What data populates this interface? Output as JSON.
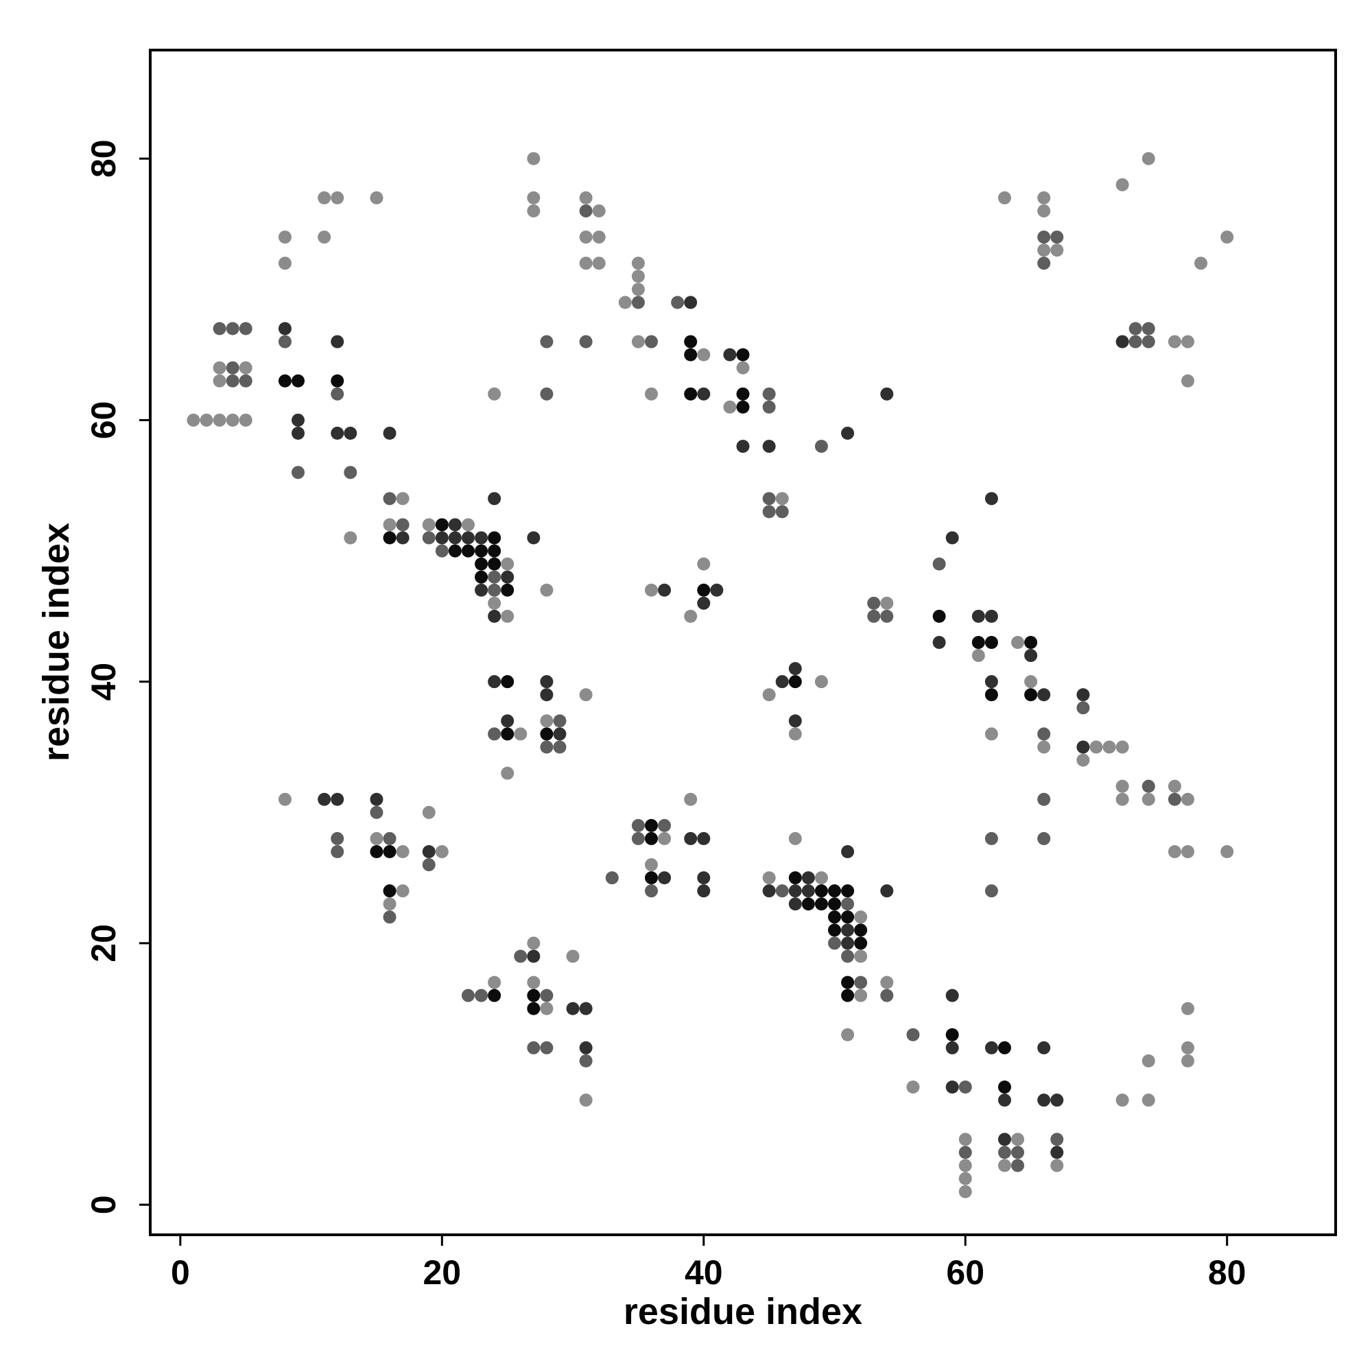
{
  "chart_data": {
    "type": "scatter",
    "xlabel": "residue index",
    "ylabel": "residue index",
    "xlim": [
      -2.3,
      88.3
    ],
    "ylim": [
      -2.3,
      88.3
    ],
    "xticks": [
      0,
      20,
      40,
      60,
      80
    ],
    "yticks": [
      0,
      20,
      40,
      60,
      80
    ],
    "x": [
      27,
      74,
      72,
      11,
      12,
      15,
      27,
      31,
      63,
      66,
      27,
      31,
      32,
      66,
      8,
      11,
      31,
      32,
      66,
      67,
      80,
      66,
      67,
      8,
      31,
      32,
      35,
      66,
      78,
      35,
      35,
      34,
      35,
      38,
      39,
      3,
      4,
      5,
      8,
      73,
      74,
      8,
      12,
      28,
      31,
      35,
      36,
      39,
      72,
      73,
      74,
      76,
      77,
      39,
      40,
      42,
      43,
      3,
      4,
      5,
      43,
      3,
      4,
      5,
      8,
      9,
      12,
      77,
      12,
      24,
      28,
      36,
      39,
      40,
      43,
      45,
      54,
      42,
      43,
      45,
      1,
      2,
      3,
      4,
      5,
      9,
      9,
      12,
      13,
      16,
      51,
      43,
      45,
      49,
      9,
      13,
      16,
      17,
      24,
      45,
      46,
      62,
      45,
      46,
      16,
      17,
      19,
      20,
      21,
      22,
      13,
      16,
      17,
      19,
      20,
      21,
      22,
      23,
      24,
      27,
      59,
      20,
      21,
      22,
      23,
      24,
      23,
      24,
      25,
      40,
      58,
      23,
      24,
      25,
      23,
      24,
      25,
      28,
      36,
      37,
      40,
      41,
      24,
      40,
      53,
      54,
      24,
      25,
      39,
      53,
      54,
      58,
      61,
      62,
      58,
      61,
      62,
      64,
      65,
      61,
      65,
      47,
      24,
      25,
      28,
      46,
      47,
      49,
      62,
      65,
      28,
      31,
      45,
      62,
      65,
      66,
      69,
      69,
      25,
      28,
      29,
      47,
      24,
      25,
      26,
      28,
      29,
      47,
      62,
      66,
      28,
      29,
      66,
      69,
      70,
      71,
      72,
      69,
      25,
      72,
      74,
      76,
      8,
      11,
      12,
      15,
      39,
      66,
      72,
      74,
      76,
      77,
      15,
      19,
      35,
      36,
      37,
      12,
      15,
      16,
      35,
      36,
      37,
      39,
      40,
      47,
      62,
      66,
      12,
      15,
      16,
      17,
      19,
      20,
      51,
      76,
      77,
      80,
      19,
      36,
      33,
      36,
      37,
      40,
      45,
      47,
      48,
      49,
      16,
      17,
      36,
      40,
      45,
      46,
      47,
      48,
      49,
      50,
      51,
      54,
      62,
      16,
      47,
      48,
      49,
      50,
      51,
      16,
      50,
      51,
      52,
      50,
      51,
      52,
      27,
      50,
      51,
      52,
      26,
      27,
      30,
      51,
      52,
      24,
      27,
      51,
      52,
      54,
      22,
      23,
      24,
      27,
      28,
      51,
      52,
      54,
      59,
      27,
      28,
      30,
      31,
      77,
      51,
      56,
      59,
      27,
      28,
      31,
      59,
      62,
      63,
      66,
      77,
      31,
      74,
      77,
      56,
      59,
      60,
      63,
      31,
      63,
      66,
      67,
      72,
      74,
      60,
      63,
      64,
      67,
      60,
      63,
      64,
      67,
      60,
      63,
      64,
      67,
      60,
      60
    ],
    "values": [
      80,
      80,
      78,
      77,
      77,
      77,
      77,
      77,
      77,
      77,
      76,
      76,
      76,
      76,
      74,
      74,
      74,
      74,
      74,
      74,
      74,
      73,
      73,
      72,
      72,
      72,
      72,
      72,
      72,
      71,
      70,
      69,
      69,
      69,
      69,
      67,
      67,
      67,
      67,
      67,
      67,
      66,
      66,
      66,
      66,
      66,
      66,
      66,
      66,
      66,
      66,
      66,
      66,
      65,
      65,
      65,
      65,
      64,
      64,
      64,
      64,
      63,
      63,
      63,
      63,
      63,
      63,
      63,
      62,
      62,
      62,
      62,
      62,
      62,
      62,
      62,
      62,
      61,
      61,
      61,
      60,
      60,
      60,
      60,
      60,
      60,
      59,
      59,
      59,
      59,
      59,
      58,
      58,
      58,
      56,
      56,
      54,
      54,
      54,
      54,
      54,
      54,
      53,
      53,
      52,
      52,
      52,
      52,
      52,
      52,
      51,
      51,
      51,
      51,
      51,
      51,
      51,
      51,
      51,
      51,
      51,
      50,
      50,
      50,
      50,
      50,
      49,
      49,
      49,
      49,
      49,
      48,
      48,
      48,
      47,
      47,
      47,
      47,
      47,
      47,
      47,
      47,
      46,
      46,
      46,
      46,
      45,
      45,
      45,
      45,
      45,
      45,
      45,
      45,
      43,
      43,
      43,
      43,
      43,
      42,
      42,
      41,
      40,
      40,
      40,
      40,
      40,
      40,
      40,
      40,
      39,
      39,
      39,
      39,
      39,
      39,
      39,
      38,
      37,
      37,
      37,
      37,
      36,
      36,
      36,
      36,
      36,
      36,
      36,
      36,
      35,
      35,
      35,
      35,
      35,
      35,
      35,
      34,
      33,
      32,
      32,
      32,
      31,
      31,
      31,
      31,
      31,
      31,
      31,
      31,
      31,
      31,
      30,
      30,
      29,
      29,
      29,
      28,
      28,
      28,
      28,
      28,
      28,
      28,
      28,
      28,
      28,
      28,
      27,
      27,
      27,
      27,
      27,
      27,
      27,
      27,
      27,
      27,
      26,
      26,
      25,
      25,
      25,
      25,
      25,
      25,
      25,
      25,
      24,
      24,
      24,
      24,
      24,
      24,
      24,
      24,
      24,
      24,
      24,
      24,
      24,
      23,
      23,
      23,
      23,
      23,
      23,
      22,
      22,
      22,
      22,
      21,
      21,
      21,
      20,
      20,
      20,
      20,
      19,
      19,
      19,
      19,
      19,
      17,
      17,
      17,
      17,
      17,
      16,
      16,
      16,
      16,
      16,
      16,
      16,
      16,
      16,
      15,
      15,
      15,
      15,
      15,
      13,
      13,
      13,
      12,
      12,
      12,
      12,
      12,
      12,
      12,
      12,
      11,
      11,
      11,
      9,
      9,
      9,
      9,
      8,
      8,
      8,
      8,
      8,
      8,
      5,
      5,
      5,
      5,
      4,
      4,
      4,
      4,
      3,
      3,
      3,
      3,
      2,
      1
    ],
    "colors": [
      "#8c8c8c",
      "#8c8c8c",
      "#8c8c8c",
      "#8c8c8c",
      "#8c8c8c",
      "#8c8c8c",
      "#8c8c8c",
      "#8c8c8c",
      "#8c8c8c",
      "#8c8c8c",
      "#8c8c8c",
      "#5e5e5e",
      "#8c8c8c",
      "#8c8c8c",
      "#8c8c8c",
      "#8c8c8c",
      "#8c8c8c",
      "#8c8c8c",
      "#5e5e5e",
      "#5e5e5e",
      "#8c8c8c",
      "#8c8c8c",
      "#8c8c8c",
      "#8c8c8c",
      "#8c8c8c",
      "#8c8c8c",
      "#8c8c8c",
      "#5e5e5e",
      "#8c8c8c",
      "#8c8c8c",
      "#8c8c8c",
      "#8c8c8c",
      "#5e5e5e",
      "#5e5e5e",
      "#303030",
      "#5e5e5e",
      "#5e5e5e",
      "#5e5e5e",
      "#303030",
      "#5e5e5e",
      "#5e5e5e",
      "#5e5e5e",
      "#303030",
      "#5e5e5e",
      "#5e5e5e",
      "#8c8c8c",
      "#5e5e5e",
      "#0c0c0c",
      "#303030",
      "#5e5e5e",
      "#5e5e5e",
      "#8c8c8c",
      "#8c8c8c",
      "#0c0c0c",
      "#8c8c8c",
      "#303030",
      "#0c0c0c",
      "#8c8c8c",
      "#5e5e5e",
      "#8c8c8c",
      "#8c8c8c",
      "#8c8c8c",
      "#5e5e5e",
      "#5e5e5e",
      "#0c0c0c",
      "#0c0c0c",
      "#0c0c0c",
      "#8c8c8c",
      "#5e5e5e",
      "#8c8c8c",
      "#5e5e5e",
      "#8c8c8c",
      "#0c0c0c",
      "#303030",
      "#0c0c0c",
      "#5e5e5e",
      "#303030",
      "#8c8c8c",
      "#0c0c0c",
      "#5e5e5e",
      "#8c8c8c",
      "#8c8c8c",
      "#8c8c8c",
      "#8c8c8c",
      "#8c8c8c",
      "#303030",
      "#303030",
      "#303030",
      "#303030",
      "#303030",
      "#303030",
      "#303030",
      "#303030",
      "#5e5e5e",
      "#5e5e5e",
      "#5e5e5e",
      "#5e5e5e",
      "#8c8c8c",
      "#303030",
      "#5e5e5e",
      "#8c8c8c",
      "#303030",
      "#5e5e5e",
      "#5e5e5e",
      "#8c8c8c",
      "#5e5e5e",
      "#8c8c8c",
      "#0c0c0c",
      "#303030",
      "#8c8c8c",
      "#8c8c8c",
      "#0c0c0c",
      "#303030",
      "#5e5e5e",
      "#303030",
      "#303030",
      "#303030",
      "#303030",
      "#0c0c0c",
      "#303030",
      "#303030",
      "#5e5e5e",
      "#0c0c0c",
      "#0c0c0c",
      "#0c0c0c",
      "#0c0c0c",
      "#0c0c0c",
      "#0c0c0c",
      "#8c8c8c",
      "#8c8c8c",
      "#5e5e5e",
      "#0c0c0c",
      "#5e5e5e",
      "#303030",
      "#303030",
      "#5e5e5e",
      "#0c0c0c",
      "#8c8c8c",
      "#8c8c8c",
      "#303030",
      "#0c0c0c",
      "#303030",
      "#8c8c8c",
      "#303030",
      "#5e5e5e",
      "#8c8c8c",
      "#303030",
      "#8c8c8c",
      "#8c8c8c",
      "#5e5e5e",
      "#5e5e5e",
      "#0c0c0c",
      "#303030",
      "#303030",
      "#303030",
      "#0c0c0c",
      "#0c0c0c",
      "#8c8c8c",
      "#0c0c0c",
      "#8c8c8c",
      "#303030",
      "#303030",
      "#303030",
      "#0c0c0c",
      "#303030",
      "#303030",
      "#0c0c0c",
      "#8c8c8c",
      "#303030",
      "#8c8c8c",
      "#303030",
      "#8c8c8c",
      "#8c8c8c",
      "#0c0c0c",
      "#0c0c0c",
      "#303030",
      "#303030",
      "#5e5e5e",
      "#303030",
      "#8c8c8c",
      "#5e5e5e",
      "#303030",
      "#5e5e5e",
      "#0c0c0c",
      "#8c8c8c",
      "#0c0c0c",
      "#303030",
      "#8c8c8c",
      "#8c8c8c",
      "#5e5e5e",
      "#5e5e5e",
      "#5e5e5e",
      "#8c8c8c",
      "#303030",
      "#8c8c8c",
      "#8c8c8c",
      "#8c8c8c",
      "#8c8c8c",
      "#8c8c8c",
      "#8c8c8c",
      "#5e5e5e",
      "#8c8c8c",
      "#8c8c8c",
      "#303030",
      "#303030",
      "#303030",
      "#8c8c8c",
      "#5e5e5e",
      "#8c8c8c",
      "#8c8c8c",
      "#5e5e5e",
      "#8c8c8c",
      "#5e5e5e",
      "#8c8c8c",
      "#5e5e5e",
      "#0c0c0c",
      "#5e5e5e",
      "#5e5e5e",
      "#8c8c8c",
      "#5e5e5e",
      "#5e5e5e",
      "#0c0c0c",
      "#8c8c8c",
      "#303030",
      "#303030",
      "#8c8c8c",
      "#5e5e5e",
      "#5e5e5e",
      "#5e5e5e",
      "#0c0c0c",
      "#0c0c0c",
      "#8c8c8c",
      "#303030",
      "#8c8c8c",
      "#303030",
      "#8c8c8c",
      "#8c8c8c",
      "#8c8c8c",
      "#5e5e5e",
      "#8c8c8c",
      "#5e5e5e",
      "#0c0c0c",
      "#303030",
      "#303030",
      "#8c8c8c",
      "#0c0c0c",
      "#303030",
      "#8c8c8c",
      "#0c0c0c",
      "#8c8c8c",
      "#5e5e5e",
      "#303030",
      "#303030",
      "#5e5e5e",
      "#303030",
      "#303030",
      "#0c0c0c",
      "#0c0c0c",
      "#0c0c0c",
      "#303030",
      "#5e5e5e",
      "#8c8c8c",
      "#303030",
      "#0c0c0c",
      "#0c0c0c",
      "#0c0c0c",
      "#5e5e5e",
      "#5e5e5e",
      "#0c0c0c",
      "#0c0c0c",
      "#8c8c8c",
      "#0c0c0c",
      "#303030",
      "#0c0c0c",
      "#8c8c8c",
      "#5e5e5e",
      "#303030",
      "#0c0c0c",
      "#5e5e5e",
      "#303030",
      "#8c8c8c",
      "#5e5e5e",
      "#8c8c8c",
      "#8c8c8c",
      "#8c8c8c",
      "#0c0c0c",
      "#5e5e5e",
      "#8c8c8c",
      "#5e5e5e",
      "#5e5e5e",
      "#0c0c0c",
      "#0c0c0c",
      "#5e5e5e",
      "#0c0c0c",
      "#8c8c8c",
      "#5e5e5e",
      "#303030",
      "#0c0c0c",
      "#8c8c8c",
      "#303030",
      "#303030",
      "#8c8c8c",
      "#8c8c8c",
      "#5e5e5e",
      "#0c0c0c",
      "#5e5e5e",
      "#5e5e5e",
      "#303030",
      "#303030",
      "#303030",
      "#0c0c0c",
      "#303030",
      "#8c8c8c",
      "#5e5e5e",
      "#8c8c8c",
      "#8c8c8c",
      "#8c8c8c",
      "#303030",
      "#5e5e5e",
      "#0c0c0c",
      "#8c8c8c",
      "#303030",
      "#303030",
      "#303030",
      "#8c8c8c",
      "#8c8c8c",
      "#8c8c8c",
      "#303030",
      "#8c8c8c",
      "#5e5e5e",
      "#5e5e5e",
      "#5e5e5e",
      "#5e5e5e",
      "#303030",
      "#8c8c8c",
      "#8c8c8c",
      "#5e5e5e",
      "#8c8c8c",
      "#8c8c8c",
      "#8c8c8c"
    ]
  }
}
